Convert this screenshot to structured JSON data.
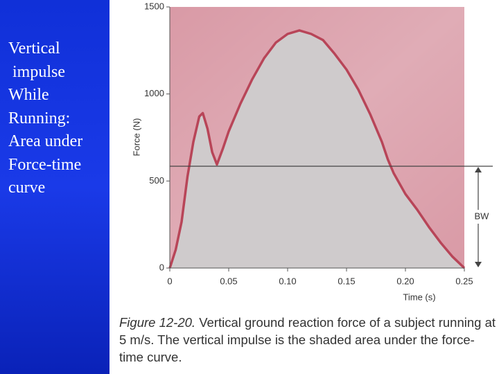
{
  "sidebar": {
    "lines": [
      "Vertical",
      " impulse",
      "While",
      "Running:",
      "Area under",
      "Force-time",
      "curve"
    ]
  },
  "chart_data": {
    "type": "area",
    "x_label": "Time (s)",
    "y_label": "Force (N)",
    "x": [
      0,
      0.005,
      0.01,
      0.015,
      0.02,
      0.025,
      0.028,
      0.032,
      0.036,
      0.04,
      0.045,
      0.05,
      0.06,
      0.07,
      0.08,
      0.09,
      0.1,
      0.11,
      0.12,
      0.13,
      0.14,
      0.15,
      0.16,
      0.17,
      0.18,
      0.185,
      0.19,
      0.2,
      0.21,
      0.22,
      0.23,
      0.24,
      0.25
    ],
    "values": [
      0,
      105,
      265,
      525,
      725,
      870,
      890,
      800,
      665,
      595,
      685,
      785,
      945,
      1085,
      1205,
      1295,
      1345,
      1365,
      1345,
      1310,
      1230,
      1140,
      1025,
      885,
      725,
      625,
      545,
      425,
      335,
      235,
      145,
      65,
      0
    ],
    "color": "#b84558",
    "fill_color": "#cfcbcc",
    "background_color": "#d99aa6",
    "xlim": [
      0,
      0.25
    ],
    "xticks": [
      0,
      0.05,
      {
        "value": 0.1,
        "label": "0.10"
      },
      0.15,
      {
        "value": 0.2,
        "label": "0.20"
      },
      0.25
    ],
    "ylim": [
      0,
      1500
    ],
    "yticks": [
      0,
      500,
      1000,
      1500
    ],
    "annotation": {
      "label": "BW",
      "value": 585
    },
    "caption_label": "Figure 12-20.",
    "caption": "Vertical ground reaction force of a subject running at 5 m/s. The vertical impulse is the shaded area under the force-time curve."
  }
}
